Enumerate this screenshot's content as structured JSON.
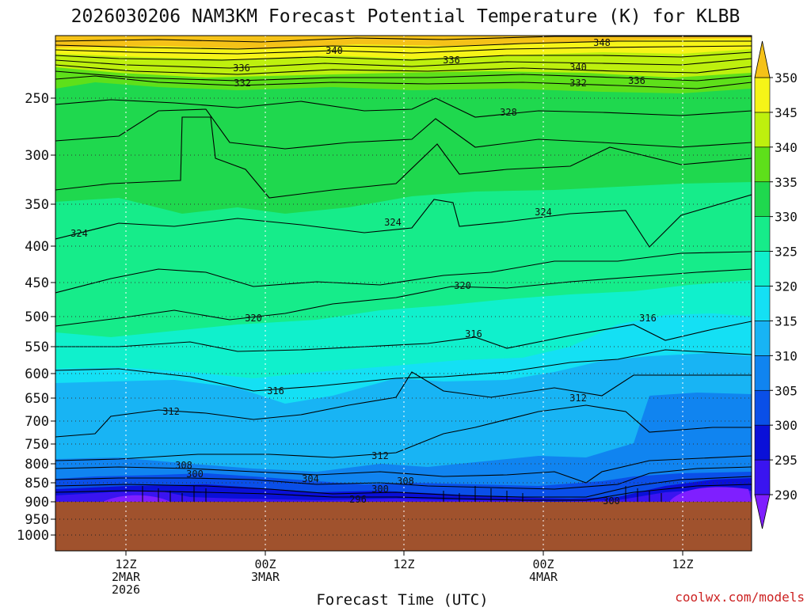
{
  "chart_data": {
    "type": "heatmap",
    "title": "2026030206 NAM3KM Forecast Potential Temperature (K) for KLBB",
    "xlabel": "Forecast Time (UTC)",
    "ylabel": "",
    "y_scale": "log-pressure",
    "y_ticks": [
      "250",
      "300",
      "350",
      "400",
      "450",
      "500",
      "550",
      "600",
      "650",
      "700",
      "750",
      "800",
      "850",
      "900",
      "950",
      "1000"
    ],
    "x_ticks": [
      {
        "line1": "12Z",
        "line2": "2MAR",
        "line3": "2026"
      },
      {
        "line1": "00Z",
        "line2": "3MAR",
        "line3": ""
      },
      {
        "line1": "12Z",
        "line2": "",
        "line3": ""
      },
      {
        "line1": "00Z",
        "line2": "4MAR",
        "line3": ""
      },
      {
        "line1": "12Z",
        "line2": "",
        "line3": ""
      }
    ],
    "colorbar": {
      "levels": [
        "290",
        "295",
        "300",
        "305",
        "310",
        "315",
        "320",
        "325",
        "330",
        "335",
        "340",
        "345",
        "350"
      ],
      "colors": [
        "#7f1fff",
        "#3a14f0",
        "#0a10d8",
        "#0a4fe8",
        "#1084f0",
        "#18b4f4",
        "#14e0f4",
        "#10f0cc",
        "#16ec8a",
        "#1fd84e",
        "#5ee01a",
        "#bef00e",
        "#f6f418",
        "#f5c218"
      ]
    },
    "contour_labels": [
      "348",
      "340",
      "336",
      "336",
      "340",
      "336",
      "332",
      "332",
      "328",
      "324",
      "324",
      "324",
      "320",
      "320",
      "316",
      "316",
      "316",
      "312",
      "312",
      "312",
      "308",
      "308",
      "304",
      "300",
      "300",
      "300",
      "296"
    ],
    "grid": true,
    "terrain_color": "#a0522d",
    "surface_pressure": "900"
  },
  "credit": "coolwx.com/models"
}
